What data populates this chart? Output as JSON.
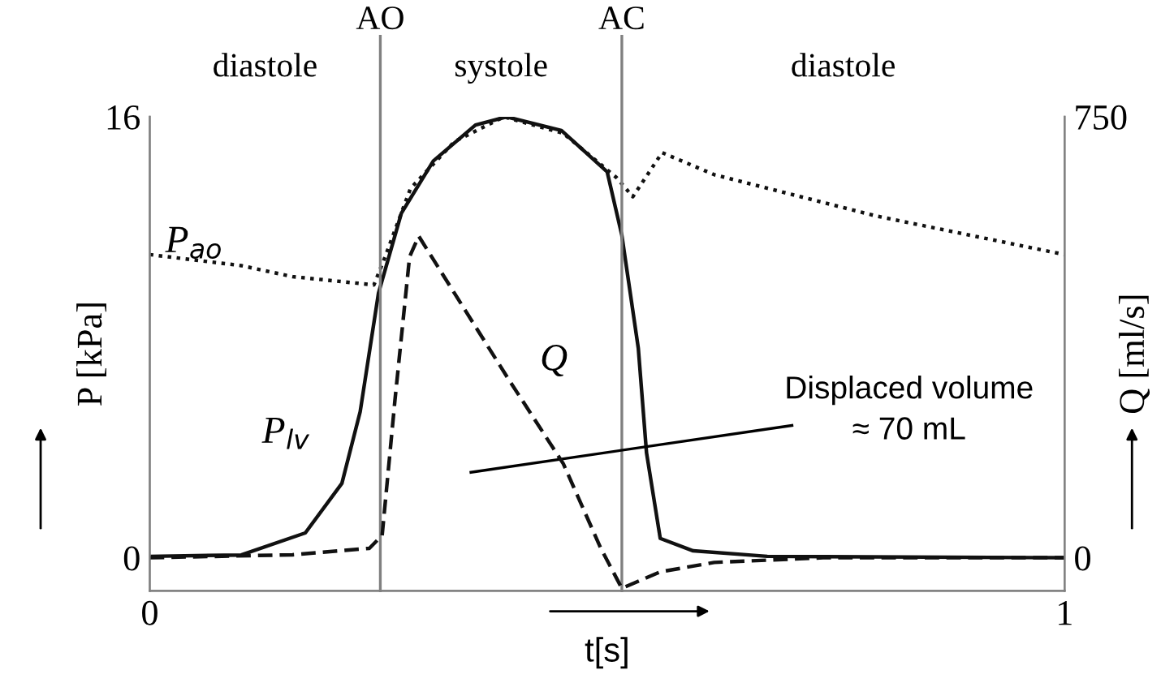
{
  "chart_data": {
    "type": "line",
    "xlabel": "t[s]",
    "ylabel": "P [kPa]",
    "y2label": "Q [ml/s]",
    "xlim": [
      0,
      1
    ],
    "xticks": [
      0,
      1
    ],
    "ylim": [
      -1.2,
      16
    ],
    "yticks": [
      0,
      16
    ],
    "y2lim": [
      -56.25,
      750
    ],
    "y2ticks": [
      0,
      750
    ],
    "grid": false,
    "legend": false,
    "marker": "none",
    "series": [
      {
        "name": "P$_{lv}$",
        "color": "#111111",
        "line_style": "solid",
        "x": [
          0,
          0.1,
          0.17,
          0.21,
          0.23,
          0.25,
          0.275,
          0.31,
          0.356,
          0.39,
          0.45,
          0.5,
          0.516,
          0.534,
          0.543,
          0.558,
          0.594,
          0.675,
          1.0
        ],
        "values": [
          0.05,
          0.1,
          0.9,
          2.7,
          5.3,
          9.6,
          12.5,
          14.4,
          15.7,
          16.0,
          15.5,
          14.0,
          11.7,
          7.6,
          3.8,
          0.7,
          0.25,
          0.05,
          0
        ]
      },
      {
        "name": "P$_{ao}$",
        "color": "#111111",
        "line_style": "dotted",
        "x": [
          0,
          0.1,
          0.156,
          0.245,
          0.257,
          0.285,
          0.333,
          0.387,
          0.452,
          0.51,
          0.528,
          0.56,
          0.617,
          0.794,
          1.0
        ],
        "values": [
          11.0,
          10.6,
          10.2,
          9.9,
          10.9,
          13.4,
          15.1,
          16.0,
          15.4,
          13.8,
          13.1,
          14.7,
          13.9,
          12.4,
          11.0
        ]
      },
      {
        "name": "Q",
        "color": "#111111",
        "line_style": "dashed",
        "axis": "y2",
        "x": [
          0,
          0.156,
          0.24,
          0.254,
          0.268,
          0.284,
          0.294,
          0.333,
          0.392,
          0.452,
          0.493,
          0.516,
          0.558,
          0.617,
          0.736,
          1.0
        ],
        "values": [
          0,
          5,
          16,
          38,
          268,
          512,
          547,
          450,
          304,
          160,
          16,
          -52,
          -24,
          -8,
          0,
          0
        ]
      }
    ],
    "ref_lines": [
      {
        "axis": "x",
        "value": 0.252,
        "label": "AO",
        "color": "#808080"
      },
      {
        "axis": "x",
        "value": 0.516,
        "label": "AC",
        "color": "#808080"
      }
    ],
    "annotations": [
      "diastole",
      "systole",
      "diastole",
      "Displaced volume\n≈ 70 mL"
    ]
  }
}
